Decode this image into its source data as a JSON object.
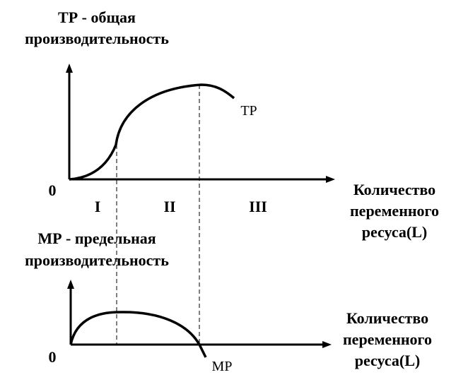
{
  "top_chart": {
    "title_line1": "ТР - общая",
    "title_line2": "производительность",
    "origin": "0",
    "curve_label": "ТР",
    "x_label_line1": "Количество",
    "x_label_line2": "переменного",
    "x_label_line3": "ресуса(L)",
    "stages": [
      "I",
      "II",
      "III"
    ]
  },
  "bottom_chart": {
    "title_line1": "МР - предельная",
    "title_line2": "производительность",
    "origin": "0",
    "curve_label": "МР",
    "x_label_line1": "Количество",
    "x_label_line2": "переменного",
    "x_label_line3": "ресуса(L)"
  }
}
